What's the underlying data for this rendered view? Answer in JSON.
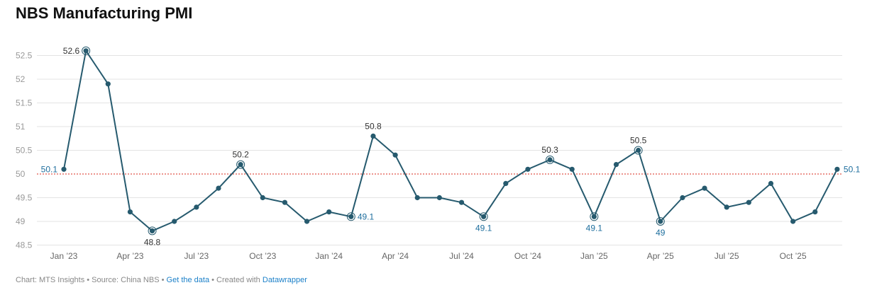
{
  "title": "NBS Manufacturing PMI",
  "footer": {
    "chart": "Chart: MTS Insights",
    "sep": " • ",
    "source": "Source: China NBS",
    "get_data": "Get the data",
    "created": "Created with",
    "tool": "Datawrapper"
  },
  "colors": {
    "line": "#265a6e",
    "reference": "#e0564b",
    "grid": "#e3e3e3",
    "tick": "#999999",
    "label": "#333333",
    "label_alt": "#1f6f9e"
  },
  "chart_data": {
    "type": "line",
    "title": "NBS Manufacturing PMI",
    "ylim": [
      48.5,
      52.6
    ],
    "yticks": [
      48.5,
      49,
      49.5,
      50,
      50.5,
      51,
      51.5,
      52,
      52.5
    ],
    "reference_line": 50,
    "xticks": [
      {
        "label": "Jan ’23",
        "index": 0
      },
      {
        "label": "Apr ’23",
        "index": 3
      },
      {
        "label": "Jul ’23",
        "index": 6
      },
      {
        "label": "Oct ’23",
        "index": 9
      },
      {
        "label": "Jan ’24",
        "index": 12
      },
      {
        "label": "Apr ’24",
        "index": 15
      },
      {
        "label": "Jul ’24",
        "index": 18
      },
      {
        "label": "Oct ’24",
        "index": 21
      },
      {
        "label": "Jan ’25",
        "index": 24
      },
      {
        "label": "Apr ’25",
        "index": 27
      },
      {
        "label": "Jul ’25",
        "index": 30
      },
      {
        "label": "Oct ’25",
        "index": 33
      }
    ],
    "series": [
      {
        "name": "PMI",
        "values": [
          50.1,
          52.6,
          51.9,
          49.2,
          48.8,
          49.0,
          49.3,
          49.7,
          50.2,
          49.5,
          49.4,
          49.0,
          49.2,
          49.1,
          50.8,
          50.4,
          49.5,
          49.5,
          49.4,
          49.1,
          49.8,
          50.1,
          50.3,
          50.1,
          49.1,
          50.2,
          50.5,
          49.0,
          49.5,
          49.7,
          49.3,
          49.4,
          49.8,
          49.0,
          49.2,
          50.1
        ]
      }
    ],
    "annotations": [
      {
        "index": 0,
        "text": "50.1",
        "pos": "left",
        "ring": false,
        "alt": true
      },
      {
        "index": 1,
        "text": "52.6",
        "pos": "left",
        "ring": true,
        "alt": false
      },
      {
        "index": 4,
        "text": "48.8",
        "pos": "below",
        "ring": true,
        "alt": false
      },
      {
        "index": 8,
        "text": "50.2",
        "pos": "above",
        "ring": true,
        "alt": false
      },
      {
        "index": 13,
        "text": "49.1",
        "pos": "right",
        "ring": true,
        "alt": true
      },
      {
        "index": 14,
        "text": "50.8",
        "pos": "above",
        "ring": false,
        "alt": false
      },
      {
        "index": 19,
        "text": "49.1",
        "pos": "below",
        "ring": true,
        "alt": true
      },
      {
        "index": 22,
        "text": "50.3",
        "pos": "above",
        "ring": true,
        "alt": false
      },
      {
        "index": 24,
        "text": "49.1",
        "pos": "below",
        "ring": true,
        "alt": true
      },
      {
        "index": 26,
        "text": "50.5",
        "pos": "above",
        "ring": true,
        "alt": false
      },
      {
        "index": 27,
        "text": "49",
        "pos": "below",
        "ring": true,
        "alt": true
      },
      {
        "index": 35,
        "text": "50.1",
        "pos": "right",
        "ring": false,
        "alt": true
      }
    ]
  }
}
